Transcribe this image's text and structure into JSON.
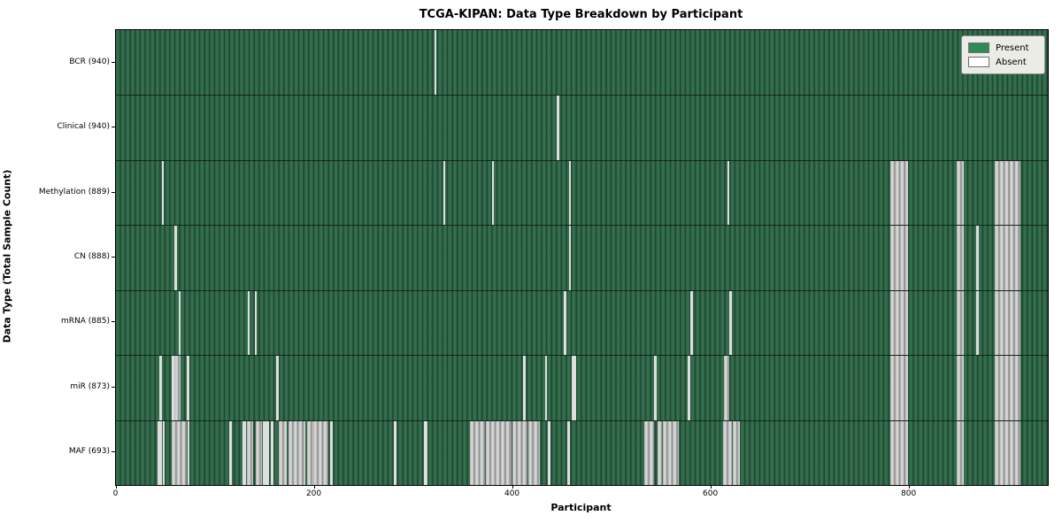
{
  "title": "TCGA-KIPAN: Data Type Breakdown by Participant",
  "xlabel": "Participant",
  "ylabel": "Data Type (Total Sample Count)",
  "legend": {
    "present_label": "Present",
    "absent_label": "Absent"
  },
  "colors": {
    "present": "#2e8b57",
    "present_light": "#356f4e",
    "present_mid": "#2b5f42",
    "present_dark": "#1e4731",
    "absent": "#ffffff",
    "absent_cluster": "#ababab"
  },
  "chart_data": {
    "type": "heatmap",
    "title": "TCGA-KIPAN: Data Type Breakdown by Participant",
    "xlabel": "Participant",
    "ylabel": "Data Type (Total Sample Count)",
    "legend_entries": [
      "Present",
      "Absent"
    ],
    "legend_position": "upper right",
    "x_ticks": [
      0,
      200,
      400,
      600,
      800
    ],
    "x_range": [
      0,
      940
    ],
    "rows": [
      {
        "label": "BCR (940)",
        "total_samples": 940,
        "absent_ranges": [
          [
            321,
            322
          ]
        ]
      },
      {
        "label": "Clinical (940)",
        "total_samples": 940,
        "absent_ranges": [
          [
            445,
            446
          ]
        ]
      },
      {
        "label": "Methylation (889)",
        "total_samples": 889,
        "absent_ranges": [
          [
            46,
            47
          ],
          [
            330,
            331
          ],
          [
            379,
            380
          ],
          [
            457,
            458
          ],
          [
            617,
            618
          ],
          [
            781,
            798
          ],
          [
            848,
            854
          ],
          [
            886,
            911
          ]
        ]
      },
      {
        "label": "CN (888)",
        "total_samples": 888,
        "absent_ranges": [
          [
            59,
            61
          ],
          [
            457,
            458
          ],
          [
            781,
            798
          ],
          [
            848,
            854
          ],
          [
            868,
            869
          ],
          [
            886,
            911
          ]
        ]
      },
      {
        "label": "mRNA (885)",
        "total_samples": 885,
        "absent_ranges": [
          [
            63,
            64
          ],
          [
            133,
            134
          ],
          [
            140,
            141
          ],
          [
            452,
            453
          ],
          [
            579,
            581
          ],
          [
            619,
            620
          ],
          [
            781,
            798
          ],
          [
            848,
            854
          ],
          [
            868,
            869
          ],
          [
            886,
            911
          ]
        ]
      },
      {
        "label": "miR (873)",
        "total_samples": 873,
        "absent_ranges": [
          [
            44,
            45
          ],
          [
            56,
            58
          ],
          [
            59,
            64
          ],
          [
            71,
            73
          ],
          [
            162,
            163
          ],
          [
            411,
            412
          ],
          [
            433,
            434
          ],
          [
            460,
            463
          ],
          [
            543,
            544
          ],
          [
            577,
            578
          ],
          [
            613,
            618
          ],
          [
            781,
            798
          ],
          [
            848,
            854
          ],
          [
            886,
            911
          ]
        ]
      },
      {
        "label": "MAF (693)",
        "total_samples": 693,
        "absent_ranges": [
          [
            42,
            45
          ],
          [
            47,
            48
          ],
          [
            56,
            70
          ],
          [
            72,
            73
          ],
          [
            114,
            116
          ],
          [
            128,
            130
          ],
          [
            132,
            137
          ],
          [
            141,
            146
          ],
          [
            148,
            150
          ],
          [
            151,
            153
          ],
          [
            156,
            158
          ],
          [
            164,
            171
          ],
          [
            174,
            190
          ],
          [
            193,
            198
          ],
          [
            199,
            213
          ],
          [
            216,
            218
          ],
          [
            280,
            282
          ],
          [
            311,
            313
          ],
          [
            357,
            371
          ],
          [
            373,
            398
          ],
          [
            400,
            414
          ],
          [
            416,
            420
          ],
          [
            421,
            427
          ],
          [
            436,
            437
          ],
          [
            455,
            457
          ],
          [
            533,
            542
          ],
          [
            546,
            550
          ],
          [
            552,
            567
          ],
          [
            612,
            620
          ],
          [
            622,
            628
          ],
          [
            781,
            798
          ],
          [
            848,
            854
          ],
          [
            886,
            911
          ]
        ]
      }
    ]
  }
}
